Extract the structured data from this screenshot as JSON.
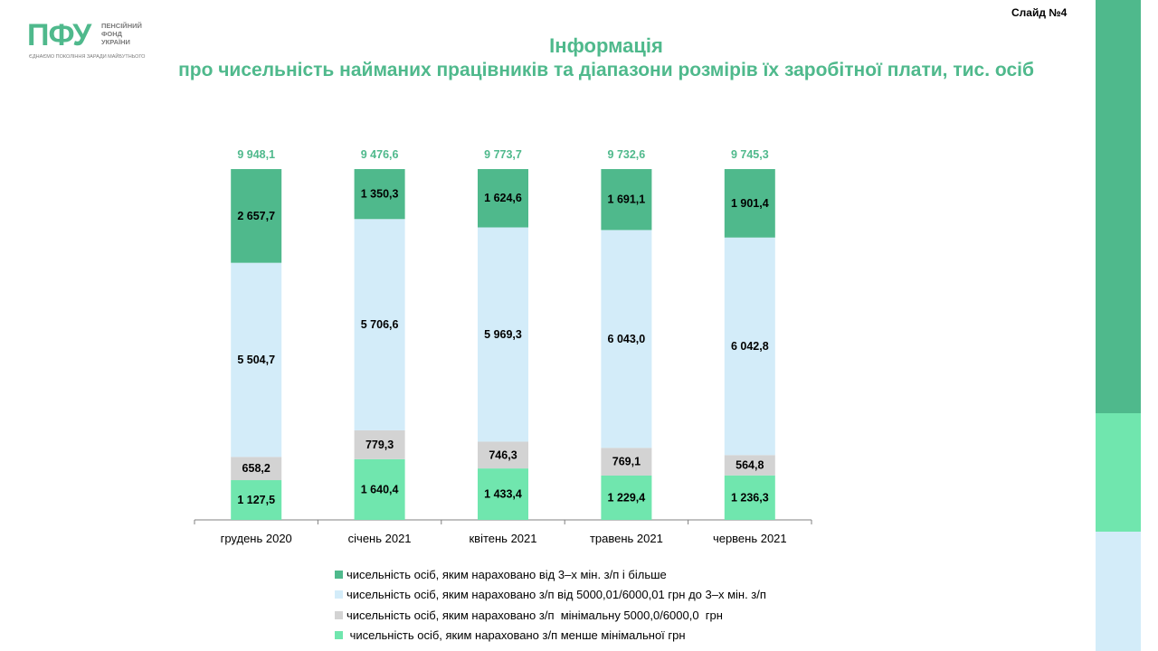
{
  "slide_label": "Слайд №4",
  "logo": {
    "mark": "ПФУ",
    "text": "ПЕНСІЙНИЙ\nФОНД\nУКРАЇНИ",
    "slogan": "ЄДНАЄМО ПОКОЛІННЯ ЗАРАДИ МАЙБУТНЬОГО"
  },
  "title": {
    "line1": "Інформація",
    "line2": "про чисельність найманих працівників та діапазони розмірів їх заробітної плати, тис. осіб"
  },
  "colors": {
    "accent": "#4fb98c",
    "series": [
      "#4fb98c",
      "#d3ecf9",
      "#d3d3d3",
      "#70e6ae"
    ]
  },
  "chart_data": {
    "type": "bar",
    "stacked": true,
    "categories": [
      "грудень 2020",
      "січень 2021",
      "квітень 2021",
      "травень 2021",
      "червень 2021"
    ],
    "totals": [
      "9 948,1",
      "9 476,6",
      "9 773,7",
      "9 732,6",
      "9 745,3"
    ],
    "series": [
      {
        "name": "чисельність осіб, яким нараховано від 3–х мін. з/п і більше",
        "values": [
          2657.7,
          1350.3,
          1624.6,
          1691.1,
          1901.4
        ],
        "labels": [
          "2 657,7",
          "1 350,3",
          "1 624,6",
          "1 691,1",
          "1 901,4"
        ]
      },
      {
        "name": "чисельність осіб, яким нараховано з/п від 5000,01/6000,01 грн до 3–х мін. з/п",
        "values": [
          5504.7,
          5706.6,
          5969.3,
          6043.0,
          6042.8
        ],
        "labels": [
          "5 504,7",
          "5 706,6",
          "5 969,3",
          "6 043,0",
          "6 042,8"
        ]
      },
      {
        "name": "чисельність осіб, яким нараховано з/п  мінімальну 5000,0/6000,0  грн",
        "values": [
          658.2,
          779.3,
          746.3,
          769.1,
          564.8
        ],
        "labels": [
          "658,2",
          "779,3",
          "746,3",
          "769,1",
          "564,8"
        ]
      },
      {
        "name": " чисельність осіб, яким нараховано з/п менше мінімальної грн",
        "values": [
          1127.5,
          1640.4,
          1433.4,
          1229.4,
          1236.3
        ],
        "labels": [
          "1 127,5",
          "1 640,4",
          "1 433,4",
          "1 229,4",
          "1 236,3"
        ]
      }
    ],
    "legend_position": "bottom",
    "grid": false
  }
}
